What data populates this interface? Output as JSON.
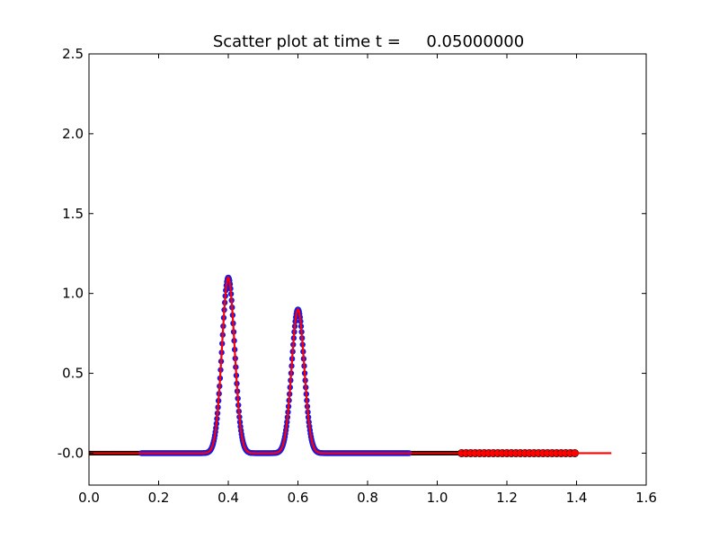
{
  "chart_data": {
    "type": "scatter",
    "title": "Scatter plot at time t =     0.05000000",
    "xlabel": "",
    "ylabel": "",
    "xlim": [
      0.0,
      1.6
    ],
    "ylim": [
      -0.2,
      2.5
    ],
    "grid": false,
    "x_ticks": [
      "0.0",
      "0.2",
      "0.4",
      "0.6",
      "0.8",
      "1.0",
      "1.2",
      "1.4",
      "1.6"
    ],
    "y_ticks": [
      "-0.0",
      "0.5",
      "1.0",
      "1.5",
      "2.0",
      "2.5"
    ],
    "series": [
      {
        "marker": "dot",
        "color": "#000000",
        "x_range": [
          0.0,
          1.07
        ],
        "peaks": [
          {
            "center": 0.4,
            "height": 1.1
          },
          {
            "center": 0.6,
            "height": 0.9
          }
        ],
        "peak_width": 0.018
      },
      {
        "marker": "dot",
        "color": "#1a1ae0",
        "x_range": [
          0.15,
          0.92
        ],
        "peaks": [
          {
            "center": 0.4,
            "height": 1.1
          },
          {
            "center": 0.6,
            "height": 0.9
          }
        ],
        "peak_width": 0.018
      },
      {
        "marker": "circle",
        "color": "#ff0000",
        "x_range": [
          1.07,
          1.4
        ],
        "y": 0.0
      },
      {
        "marker": "line",
        "color": "#ff0000",
        "x_range": [
          0.0,
          1.5
        ],
        "peaks": [
          {
            "center": 0.4,
            "height": 1.1
          },
          {
            "center": 0.6,
            "height": 0.9
          }
        ],
        "peak_width": 0.018
      }
    ]
  }
}
